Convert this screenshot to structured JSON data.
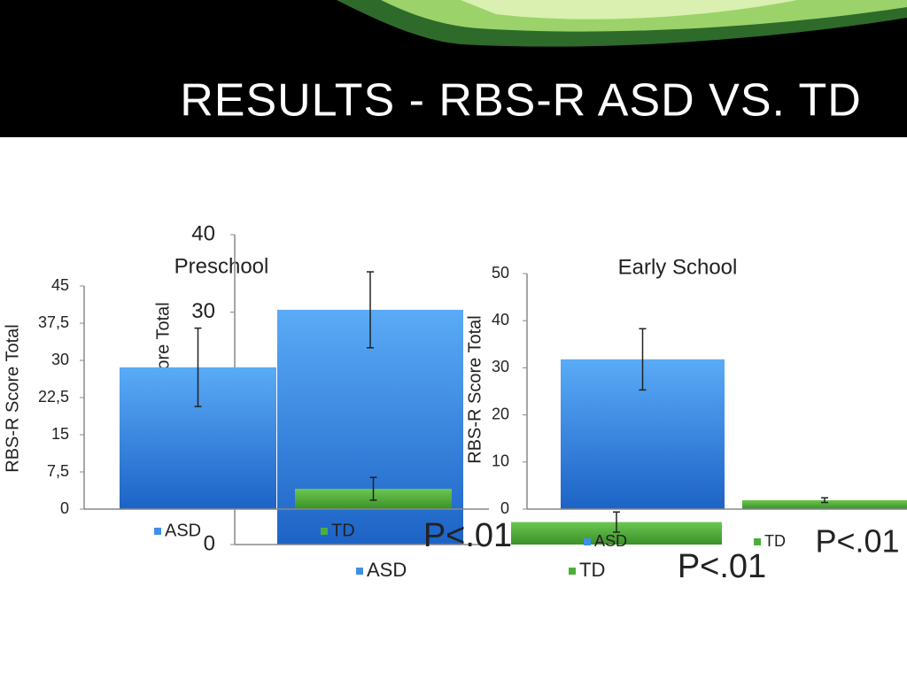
{
  "title": "RESULTS - RBS-R ASD VS. TD",
  "chart_data": [
    {
      "type": "bar",
      "y_label": "RBS-R Score Total",
      "categories": [
        "ASD",
        "TD"
      ],
      "values": [
        28.6,
        4.1
      ],
      "errors": [
        7.9,
        2.3
      ],
      "colors": [
        "#3f8fe6",
        "#4caf3a"
      ],
      "ylim": [
        0,
        45
      ],
      "yticks": [
        0,
        {
          "value": 7.5,
          "label": "7,5"
        },
        15,
        {
          "value": 22.5,
          "label": "22,5"
        },
        30,
        {
          "value": 37.5,
          "label": "37,5"
        },
        45
      ],
      "annotation": "P<.01"
    },
    {
      "type": "bar",
      "title": "Preschool",
      "y_label": "RBS-R Score Total",
      "categories": [
        "ASD",
        "TD"
      ],
      "values": [
        30.3,
        2.9
      ],
      "errors": [
        4.9,
        1.3
      ],
      "colors": [
        "#3f8fe6",
        "#4caf3a"
      ],
      "ylim": [
        0,
        40
      ],
      "yticks": [
        0,
        30,
        40
      ],
      "annotation": "P<.01"
    },
    {
      "type": "bar",
      "title": "Early School",
      "y_label": "RBS-R Score Total",
      "categories": [
        "ASD",
        "TD"
      ],
      "values": [
        31.8,
        1.9
      ],
      "errors": [
        6.5,
        0.5
      ],
      "colors": [
        "#3f8fe6",
        "#4caf3a"
      ],
      "ylim": [
        0,
        50
      ],
      "yticks": [
        0,
        10,
        20,
        30,
        40,
        50
      ],
      "annotation": "P<.01"
    }
  ]
}
